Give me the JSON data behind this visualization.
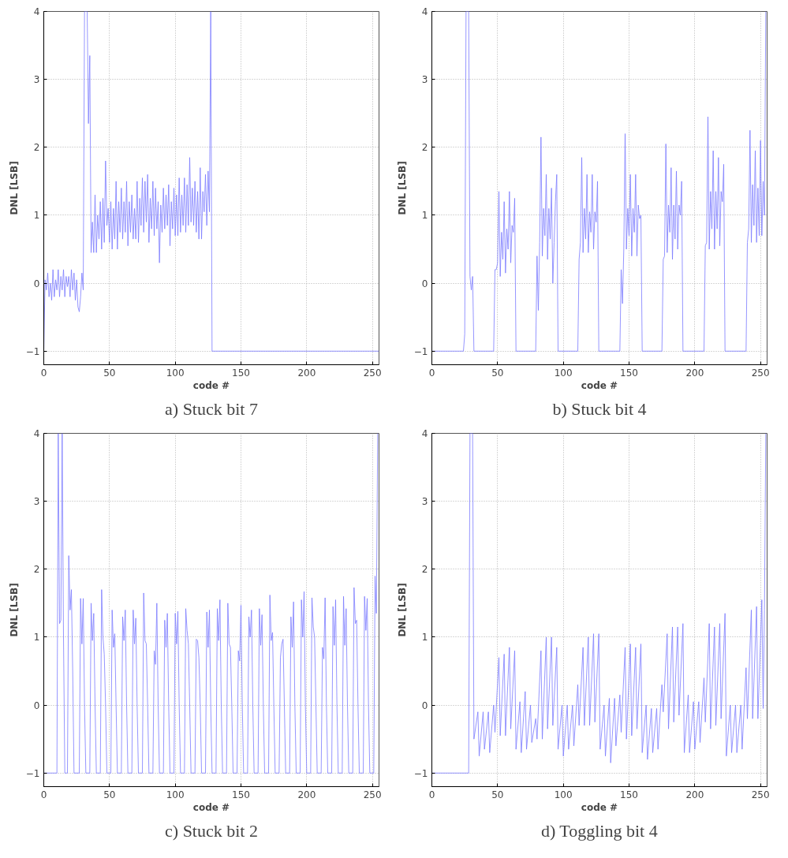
{
  "chart_data": [
    {
      "type": "line",
      "title": "a) Stuck bit 7",
      "xlabel": "code #",
      "ylabel": "DNL [LSB]",
      "xlim": [
        0,
        255
      ],
      "ylim": [
        -1.2,
        4
      ],
      "xticks": [
        0,
        50,
        100,
        150,
        200,
        250
      ],
      "yticks": [
        -1,
        0,
        1,
        2,
        3,
        4
      ],
      "grid": true,
      "x": [
        0,
        1,
        2,
        3,
        4,
        5,
        6,
        7,
        8,
        9,
        10,
        11,
        12,
        13,
        14,
        15,
        16,
        17,
        18,
        19,
        20,
        21,
        22,
        23,
        24,
        25,
        26,
        27,
        28,
        29,
        30,
        31,
        33,
        34,
        35,
        36,
        37,
        38,
        39,
        40,
        41,
        42,
        43,
        44,
        45,
        46,
        47,
        48,
        49,
        50,
        51,
        52,
        53,
        54,
        55,
        56,
        57,
        58,
        59,
        60,
        61,
        62,
        63,
        64,
        65,
        66,
        67,
        68,
        69,
        70,
        71,
        72,
        73,
        74,
        75,
        76,
        77,
        78,
        79,
        80,
        81,
        82,
        83,
        84,
        85,
        86,
        87,
        88,
        89,
        90,
        91,
        92,
        93,
        94,
        95,
        96,
        97,
        98,
        99,
        100,
        101,
        102,
        103,
        104,
        105,
        106,
        107,
        108,
        109,
        110,
        111,
        112,
        113,
        114,
        115,
        116,
        117,
        118,
        119,
        120,
        121,
        122,
        123,
        124,
        125,
        126,
        127,
        128,
        255
      ],
      "series": [
        {
          "color": "#7b7bff",
          "values": [
            -1,
            0.05,
            -0.1,
            0.15,
            -0.2,
            0.0,
            -0.25,
            0.2,
            -0.2,
            0.05,
            -0.1,
            0.2,
            -0.2,
            0.1,
            -0.1,
            0.2,
            -0.2,
            0.1,
            -0.05,
            0.1,
            -0.2,
            0.2,
            -0.1,
            0.15,
            -0.25,
            0.05,
            -0.35,
            -0.42,
            -0.2,
            0.15,
            -0.1,
            4,
            4,
            2.35,
            3.35,
            0.45,
            0.9,
            0.45,
            1.3,
            0.45,
            1.0,
            0.65,
            1.2,
            0.5,
            1.25,
            0.6,
            1.8,
            0.85,
            1.1,
            0.6,
            1.2,
            0.5,
            1.1,
            0.65,
            1.5,
            0.5,
            1.2,
            0.75,
            1.4,
            0.65,
            1.2,
            0.75,
            1.5,
            0.55,
            1.2,
            0.75,
            1.3,
            0.65,
            1.1,
            0.65,
            1.5,
            0.6,
            1.25,
            0.85,
            1.55,
            0.75,
            1.5,
            0.9,
            1.6,
            0.6,
            1.25,
            0.8,
            1.5,
            0.7,
            1.4,
            0.8,
            1.2,
            0.3,
            1.15,
            0.75,
            1.4,
            0.8,
            1.3,
            0.85,
            1.45,
            0.55,
            1.2,
            0.8,
            1.4,
            0.7,
            1.3,
            0.7,
            1.55,
            0.75,
            1.3,
            0.85,
            1.55,
            0.75,
            1.45,
            0.85,
            1.85,
            0.9,
            1.4,
            0.85,
            1.5,
            0.75,
            1.35,
            0.65,
            1.7,
            0.65,
            1.35,
            1.05,
            1.6,
            0.85,
            1.65,
            1.05,
            4,
            -1,
            -1
          ]
        }
      ]
    },
    {
      "type": "line",
      "title": "b) Stuck bit 4",
      "xlabel": "code #",
      "ylabel": "DNL [LSB]",
      "xlim": [
        0,
        255
      ],
      "ylim": [
        -1.2,
        4
      ],
      "xticks": [
        0,
        50,
        100,
        150,
        200,
        250
      ],
      "yticks": [
        -1,
        0,
        1,
        2,
        3,
        4
      ],
      "grid": true,
      "x": [
        0,
        24,
        25,
        26,
        28,
        29,
        30,
        31,
        32,
        47,
        48,
        49,
        50,
        51,
        52,
        53,
        54,
        55,
        56,
        57,
        58,
        59,
        60,
        61,
        62,
        63,
        64,
        79,
        80,
        81,
        82,
        83,
        84,
        85,
        86,
        87,
        88,
        89,
        90,
        91,
        92,
        93,
        94,
        95,
        96,
        111,
        112,
        113,
        114,
        115,
        116,
        117,
        118,
        119,
        120,
        121,
        122,
        123,
        124,
        125,
        126,
        127,
        143,
        144,
        145,
        146,
        147,
        148,
        149,
        150,
        151,
        152,
        153,
        154,
        155,
        156,
        157,
        158,
        159,
        160,
        175,
        176,
        177,
        178,
        179,
        180,
        181,
        182,
        183,
        184,
        185,
        186,
        187,
        188,
        189,
        190,
        191,
        207,
        208,
        209,
        210,
        211,
        212,
        213,
        214,
        215,
        216,
        217,
        218,
        219,
        220,
        221,
        222,
        223,
        239,
        240,
        241,
        242,
        243,
        244,
        245,
        246,
        247,
        248,
        249,
        250,
        251,
        252,
        253,
        254
      ],
      "series": [
        {
          "color": "#7b7bff",
          "values": [
            -1,
            -1,
            -0.75,
            4,
            4,
            0.1,
            -0.1,
            0.1,
            -1,
            -1,
            0.2,
            0.2,
            0.3,
            1.35,
            0.1,
            0.75,
            0.35,
            1.2,
            0.15,
            0.8,
            0.5,
            1.35,
            0.3,
            0.85,
            0.75,
            1.25,
            -1,
            -1,
            0.4,
            -0.4,
            0.6,
            2.15,
            0.4,
            1.1,
            0.7,
            1.6,
            0.35,
            1.1,
            0.65,
            1.4,
            0.0,
            0.6,
            1.2,
            1.6,
            -1,
            -1,
            0.35,
            0.6,
            1.85,
            0.45,
            1.1,
            0.65,
            1.6,
            0.45,
            1.05,
            0.75,
            1.6,
            0.5,
            1.05,
            0.9,
            1.5,
            -1,
            -1,
            0.2,
            -0.3,
            0.5,
            2.2,
            0.5,
            1.1,
            0.7,
            1.6,
            0.4,
            1.1,
            0.75,
            1.6,
            0.4,
            1.15,
            0.95,
            1.0,
            -1,
            -1,
            0.35,
            0.4,
            2.05,
            0.45,
            1.15,
            0.75,
            1.7,
            0.35,
            1.15,
            0.65,
            1.65,
            0.5,
            1.15,
            1.0,
            1.5,
            -1,
            -1,
            0.55,
            0.6,
            2.45,
            0.5,
            1.35,
            0.8,
            1.95,
            0.5,
            1.35,
            0.8,
            1.85,
            0.55,
            1.35,
            1.2,
            1.75,
            -1,
            -1,
            0.6,
            0.8,
            2.25,
            0.6,
            1.45,
            0.85,
            1.95,
            0.6,
            1.4,
            0.7,
            2.1,
            0.7,
            1.5,
            1.0,
            4
          ]
        }
      ]
    },
    {
      "type": "line",
      "title": "c) Stuck bit 2",
      "xlabel": "code #",
      "ylabel": "DNL [LSB]",
      "xlim": [
        0,
        255
      ],
      "ylim": [
        -1.2,
        4
      ],
      "xticks": [
        0,
        50,
        100,
        150,
        200,
        250
      ],
      "yticks": [
        -1,
        0,
        1,
        2,
        3,
        4
      ],
      "grid": true,
      "x": [
        0,
        10,
        11,
        12,
        13,
        14,
        15,
        16,
        18,
        19,
        20,
        21,
        22,
        23,
        27,
        28,
        29,
        30,
        31,
        32,
        35,
        36,
        37,
        38,
        39,
        40,
        43,
        44,
        45,
        46,
        47,
        48,
        51,
        52,
        53,
        54,
        55,
        56,
        59,
        60,
        61,
        62,
        63,
        64,
        67,
        68,
        69,
        70,
        71,
        72,
        75,
        76,
        77,
        78,
        79,
        80,
        83,
        84,
        85,
        86,
        87,
        88,
        91,
        92,
        93,
        94,
        95,
        96,
        99,
        100,
        101,
        102,
        103,
        104,
        107,
        108,
        109,
        110,
        111,
        112,
        115,
        116,
        117,
        118,
        119,
        120,
        123,
        124,
        125,
        126,
        127,
        128,
        131,
        132,
        133,
        134,
        135,
        136,
        139,
        140,
        141,
        142,
        143,
        144,
        147,
        148,
        149,
        150,
        151,
        152,
        155,
        156,
        157,
        158,
        159,
        160,
        163,
        164,
        165,
        166,
        167,
        168,
        171,
        172,
        173,
        174,
        175,
        176,
        179,
        180,
        181,
        182,
        183,
        184,
        187,
        188,
        189,
        190,
        191,
        192,
        195,
        196,
        197,
        198,
        199,
        200,
        203,
        204,
        205,
        206,
        207,
        208,
        211,
        212,
        213,
        214,
        215,
        216,
        219,
        220,
        221,
        222,
        223,
        224,
        227,
        228,
        229,
        230,
        231,
        232,
        235,
        236,
        237,
        238,
        239,
        240,
        243,
        244,
        245,
        246,
        247,
        248,
        251,
        252,
        253,
        254
      ],
      "series": [
        {
          "color": "#7b7bff",
          "values": [
            -1,
            -1,
            4,
            1.2,
            1.25,
            4,
            1.0,
            -1,
            -1,
            2.2,
            1.4,
            1.7,
            0.5,
            -1,
            -1,
            1.57,
            0.9,
            1.57,
            0,
            -1,
            -1,
            1.5,
            0.95,
            1.35,
            0,
            -1,
            -1,
            1.7,
            1.0,
            0.75,
            0,
            -1,
            -1,
            1.4,
            0.85,
            1.05,
            0,
            -1,
            -1,
            1.3,
            0.95,
            1.4,
            0,
            -1,
            -1,
            1.4,
            0.9,
            1.28,
            0,
            -1,
            -1,
            1.65,
            0.95,
            0.9,
            0,
            -1,
            -1,
            0.8,
            0.6,
            1.5,
            0,
            -1,
            -1,
            1.25,
            0.85,
            1.35,
            0,
            -1,
            -1,
            1.35,
            0.9,
            1.38,
            0,
            -1,
            -1,
            1.42,
            1.1,
            0.9,
            0,
            -1,
            -1,
            0.97,
            0.95,
            0.7,
            0,
            -1,
            -1,
            1.37,
            0.85,
            1.4,
            0,
            -1,
            -1,
            1.42,
            0.95,
            1.55,
            0,
            -1,
            -1,
            1.5,
            0.9,
            0.85,
            0,
            -1,
            -1,
            0.8,
            0.65,
            1.47,
            0,
            -1,
            -1,
            1.3,
            1.0,
            1.4,
            0,
            -1,
            -1,
            1.42,
            0.88,
            1.33,
            0,
            -1,
            -1,
            1.62,
            0.95,
            1.07,
            0,
            -1,
            -1,
            0.7,
            0.9,
            0.97,
            0,
            -1,
            -1,
            1.3,
            0.85,
            1.52,
            0,
            -1,
            -1,
            1.55,
            1.0,
            1.67,
            0,
            -1,
            -1,
            1.58,
            1.15,
            1.0,
            0,
            -1,
            -1,
            0.85,
            0.68,
            1.58,
            0,
            -1,
            -1,
            1.45,
            0.88,
            1.55,
            0,
            -1,
            -1,
            1.6,
            0.88,
            1.42,
            0,
            -1,
            -1,
            1.73,
            1.2,
            1.25,
            0,
            -1,
            -1,
            1.6,
            1.1,
            1.57,
            0,
            -1,
            -1,
            1.9,
            1.35,
            4
          ]
        }
      ]
    },
    {
      "type": "line",
      "title": "d) Toggling bit 4",
      "xlabel": "code #",
      "ylabel": "DNL [LSB]",
      "xlim": [
        0,
        255
      ],
      "ylim": [
        -1.2,
        4
      ],
      "xticks": [
        0,
        50,
        100,
        150,
        200,
        250
      ],
      "yticks": [
        -1,
        0,
        1,
        2,
        3,
        4
      ],
      "grid": true,
      "x": [
        0,
        28,
        29,
        31,
        32,
        35,
        36,
        39,
        40,
        43,
        44,
        47,
        48,
        51,
        52,
        55,
        56,
        59,
        60,
        63,
        64,
        67,
        68,
        71,
        72,
        75,
        76,
        79,
        80,
        83,
        84,
        87,
        88,
        91,
        92,
        95,
        96,
        99,
        100,
        103,
        104,
        107,
        108,
        111,
        112,
        115,
        116,
        119,
        120,
        123,
        124,
        127,
        128,
        131,
        132,
        135,
        136,
        139,
        140,
        143,
        144,
        147,
        148,
        151,
        152,
        155,
        156,
        159,
        160,
        163,
        164,
        167,
        168,
        171,
        172,
        175,
        176,
        179,
        180,
        183,
        184,
        187,
        188,
        191,
        192,
        195,
        196,
        199,
        200,
        203,
        204,
        207,
        208,
        211,
        212,
        215,
        216,
        219,
        220,
        223,
        224,
        227,
        228,
        231,
        232,
        235,
        236,
        239,
        240,
        243,
        244,
        247,
        248,
        251,
        252,
        253,
        254
      ],
      "series": [
        {
          "color": "#7b7bff",
          "values": [
            -1,
            -1,
            4,
            4,
            -0.5,
            -0.1,
            -0.75,
            -0.1,
            -0.65,
            -0.1,
            -0.7,
            0.0,
            -0.4,
            0.7,
            -0.45,
            0.75,
            -0.45,
            0.85,
            -0.35,
            0.8,
            -0.65,
            0.05,
            -0.7,
            0.2,
            -0.65,
            0.0,
            -0.55,
            -0.2,
            -0.5,
            0.8,
            -0.5,
            1.0,
            -0.35,
            1.0,
            -0.3,
            0.85,
            -0.65,
            0.0,
            -0.75,
            0.0,
            -0.65,
            0.0,
            -0.6,
            0.3,
            -0.3,
            0.85,
            -0.3,
            1.0,
            -0.3,
            1.05,
            -0.25,
            1.05,
            -0.65,
            0.0,
            -0.75,
            0.1,
            -0.85,
            0.1,
            -0.6,
            0.15,
            -0.4,
            0.85,
            -0.5,
            0.9,
            -0.45,
            0.85,
            -0.35,
            0.9,
            -0.7,
            0.0,
            -0.8,
            -0.05,
            -0.7,
            -0.05,
            -0.65,
            0.3,
            -0.1,
            1.05,
            -0.35,
            1.15,
            -0.25,
            1.15,
            -0.15,
            1.2,
            -0.7,
            0.15,
            -0.7,
            0.05,
            -0.65,
            0.05,
            -0.55,
            0.4,
            -0.25,
            1.2,
            -0.35,
            1.15,
            -0.3,
            1.2,
            -0.2,
            1.35,
            -0.75,
            0.0,
            -0.7,
            0.0,
            -0.7,
            0.0,
            -0.65,
            0.55,
            -0.2,
            1.4,
            -0.2,
            1.45,
            -0.2,
            1.55,
            -0.05,
            1.4,
            4
          ]
        }
      ]
    }
  ]
}
